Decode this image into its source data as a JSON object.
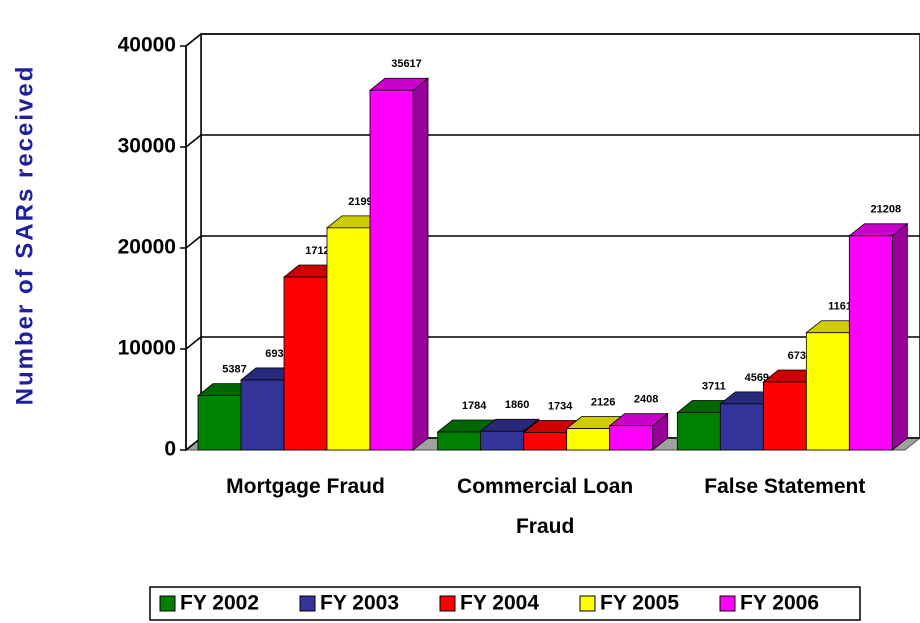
{
  "chart_data": {
    "type": "bar3d",
    "y_label": "Number of SARs received",
    "categories": [
      "Mortgage Fraud",
      "Commercial Loan Fraud",
      "False Statement"
    ],
    "series": [
      {
        "name": "FY 2002",
        "color": "#008000",
        "values": [
          5387,
          1784,
          3711
        ]
      },
      {
        "name": "FY 2003",
        "color": "#333399",
        "values": [
          6936,
          1860,
          4569
        ]
      },
      {
        "name": "FY 2004",
        "color": "#ff0000",
        "values": [
          17127,
          1734,
          6734
        ]
      },
      {
        "name": "FY 2005",
        "color": "#ffff00",
        "values": [
          21994,
          2126,
          11611
        ]
      },
      {
        "name": "FY 2006",
        "color": "#ff00ff",
        "values": [
          35617,
          2408,
          21208
        ]
      }
    ],
    "ylim": [
      0,
      40000
    ],
    "yticks": [
      0,
      10000,
      20000,
      30000,
      40000
    ],
    "grid": true,
    "legend": "bottom"
  }
}
